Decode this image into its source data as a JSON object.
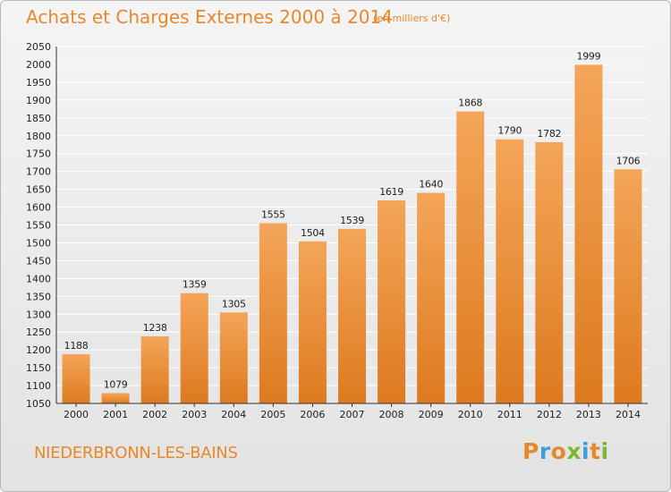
{
  "chart_data": {
    "type": "bar",
    "title": "Achats et Charges Externes 2000 à 2014",
    "subtitle": "(en milliers d'€)",
    "categories": [
      "2000",
      "2001",
      "2002",
      "2003",
      "2004",
      "2005",
      "2006",
      "2007",
      "2008",
      "2009",
      "2010",
      "2011",
      "2012",
      "2013",
      "2014"
    ],
    "values": [
      1188,
      1079,
      1238,
      1359,
      1305,
      1555,
      1504,
      1539,
      1619,
      1640,
      1868,
      1790,
      1782,
      1999,
      1706
    ],
    "ylim": [
      1050,
      2050
    ],
    "yticks": [
      1050,
      1100,
      1150,
      1200,
      1250,
      1300,
      1350,
      1400,
      1450,
      1500,
      1550,
      1600,
      1650,
      1700,
      1750,
      1800,
      1850,
      1900,
      1950,
      2000,
      2050
    ],
    "grid": true,
    "bar_color": "#f0993f",
    "xlabel": "",
    "ylabel": ""
  },
  "footer": {
    "commune": "NIEDERBRONN-LES-BAINS",
    "logo_text": "Proxiti",
    "logo_colors": [
      "#e8882c",
      "#3aa0d8",
      "#e8882c",
      "#7cb82f",
      "#3aa0d8",
      "#e8882c",
      "#7cb82f"
    ]
  },
  "colors": {
    "accent": "#e8882c",
    "grid": "#ffffff"
  }
}
